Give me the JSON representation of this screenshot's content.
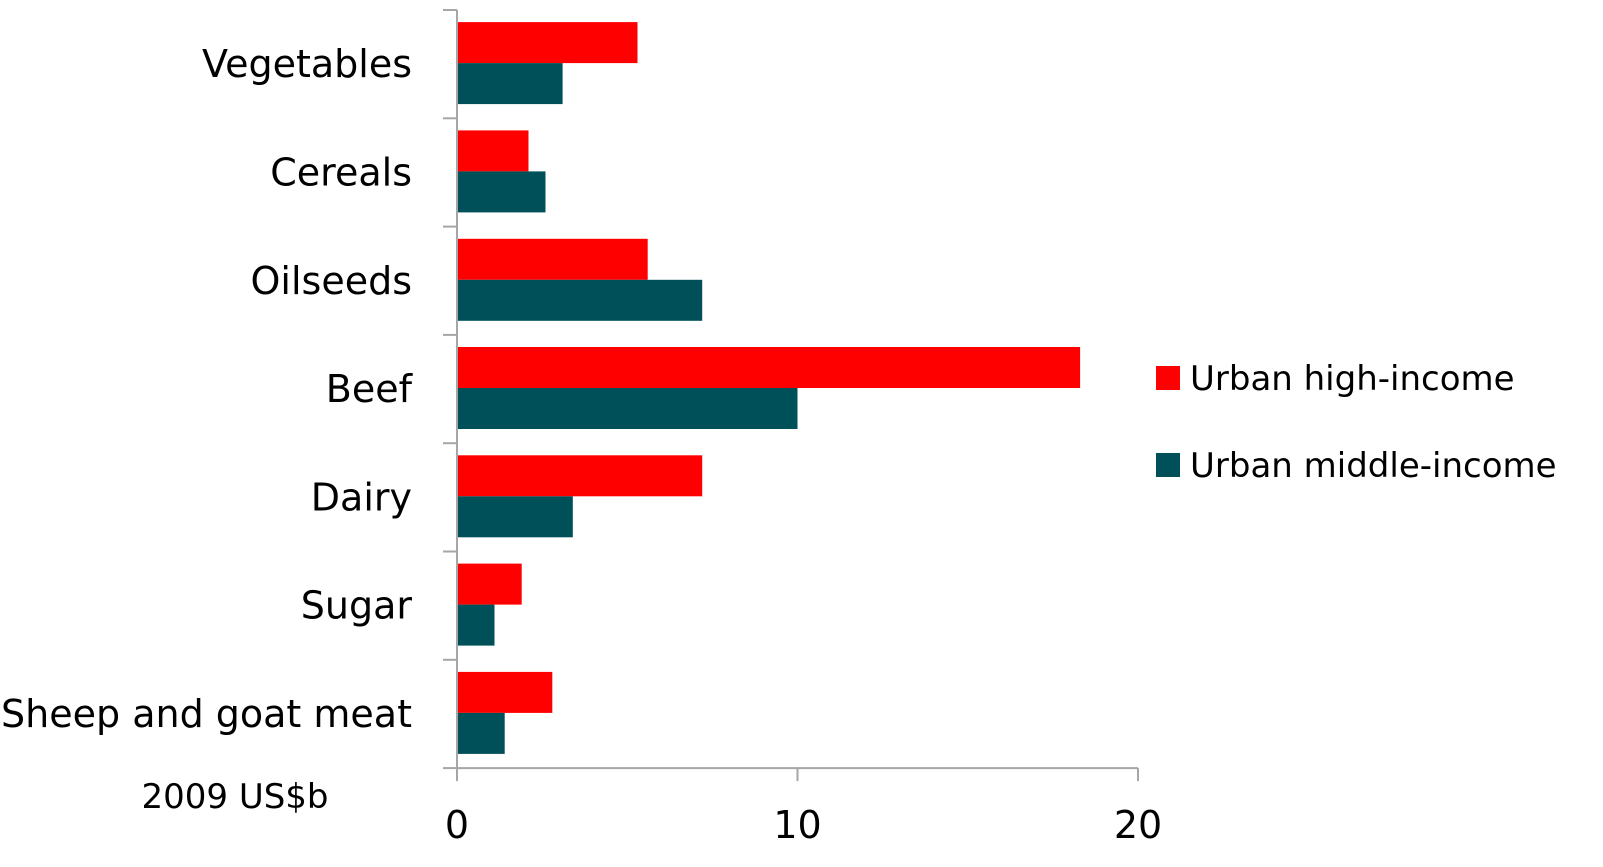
{
  "chart_data": {
    "type": "bar",
    "orientation": "horizontal",
    "categories": [
      "Vegetables",
      "Cereals",
      "Oilseeds",
      "Beef",
      "Dairy",
      "Sugar",
      "Sheep and goat meat"
    ],
    "series": [
      {
        "name": "Urban high-income",
        "color": "#ff0000",
        "values": [
          5.3,
          2.1,
          5.6,
          18.3,
          7.2,
          1.9,
          2.8
        ]
      },
      {
        "name": "Urban middle-income",
        "color": "#00505a",
        "values": [
          3.1,
          2.6,
          7.2,
          10.0,
          3.4,
          1.1,
          1.4
        ]
      }
    ],
    "xlim": [
      0,
      20
    ],
    "xticks": [
      "0",
      "10",
      "20"
    ],
    "xlabel": "2009 US$b",
    "title": "",
    "ylabel": "",
    "grid": false,
    "legend_position": "right"
  }
}
